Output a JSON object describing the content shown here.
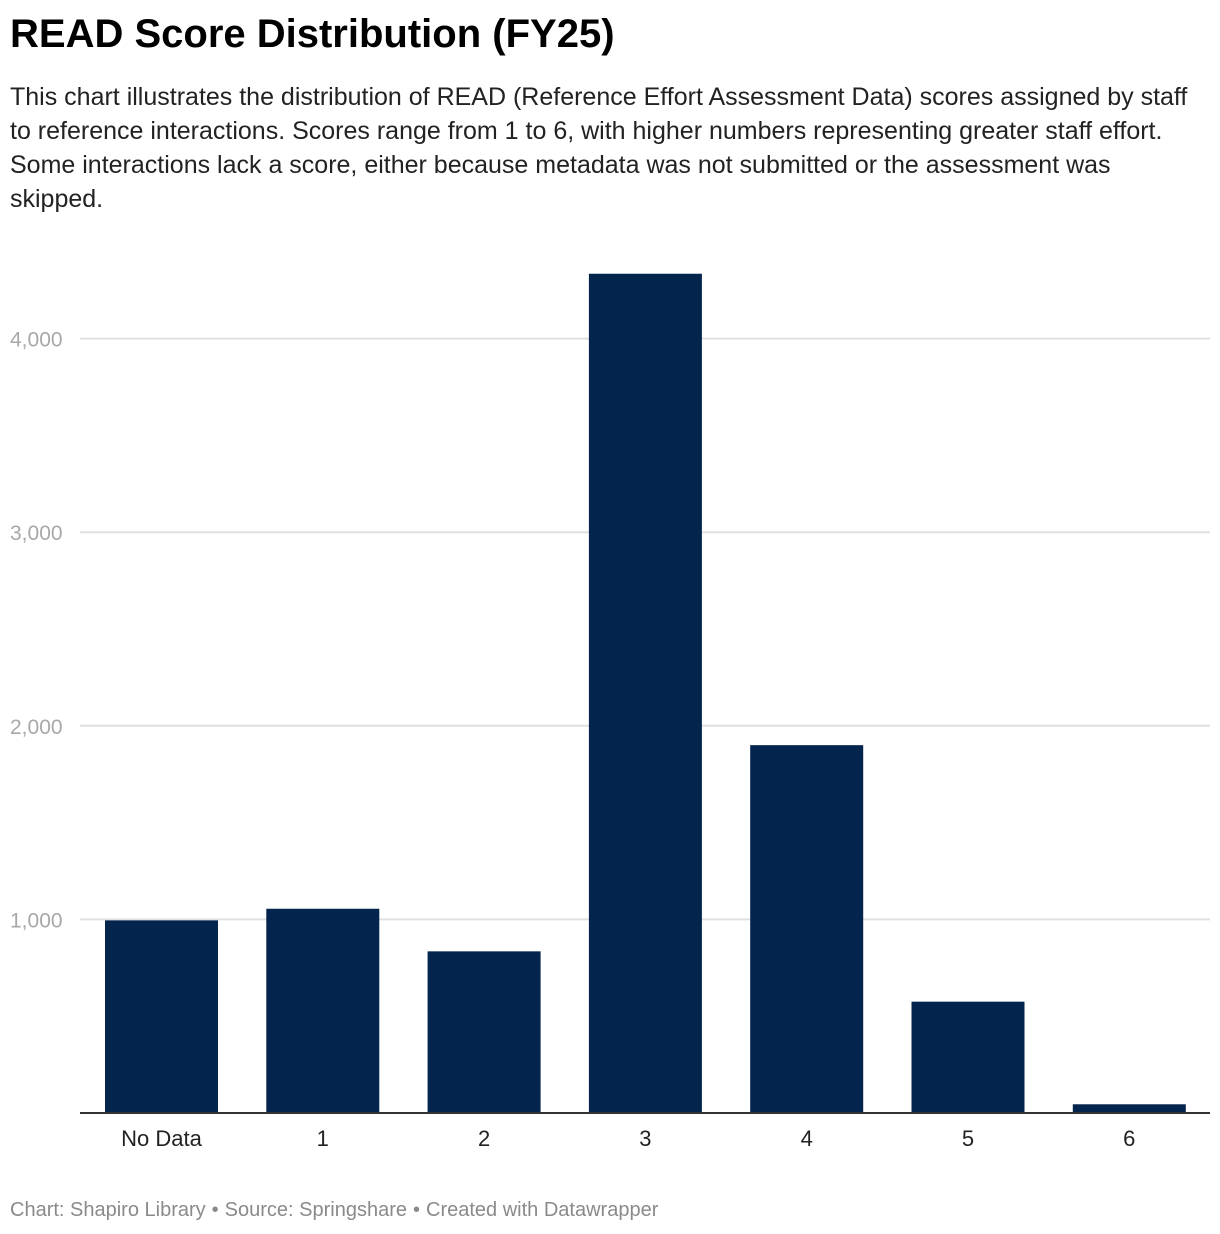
{
  "header": {
    "title": "READ Score Distribution (FY25)",
    "subtitle": "This chart illustrates the distribution of READ (Reference Effort Assessment Data) scores assigned by staff to reference interactions. Scores range from 1 to 6, with higher numbers representing greater staff effort. Some interactions lack a score, either because metadata was not submitted or the assessment was skipped."
  },
  "footer": {
    "chart_credit": "Chart: Shapiro Library",
    "source": "Source: Springshare",
    "created_with": "Created with Datawrapper",
    "separator": "•"
  },
  "colors": {
    "bar": "#03244d",
    "gridline": "#e0e0e0",
    "baseline": "#333333"
  },
  "chart_data": {
    "type": "bar",
    "title": "READ Score Distribution (FY25)",
    "xlabel": "",
    "ylabel": "",
    "categories": [
      "No Data",
      "1",
      "2",
      "3",
      "4",
      "5",
      "6"
    ],
    "values": [
      995,
      1055,
      835,
      4335,
      1900,
      575,
      45
    ],
    "ylim": [
      0,
      4400
    ],
    "yticks": [
      1000,
      2000,
      3000,
      4000
    ],
    "ytick_labels": [
      "1,000",
      "2,000",
      "3,000",
      "4,000"
    ],
    "grid": true,
    "legend": "none"
  }
}
